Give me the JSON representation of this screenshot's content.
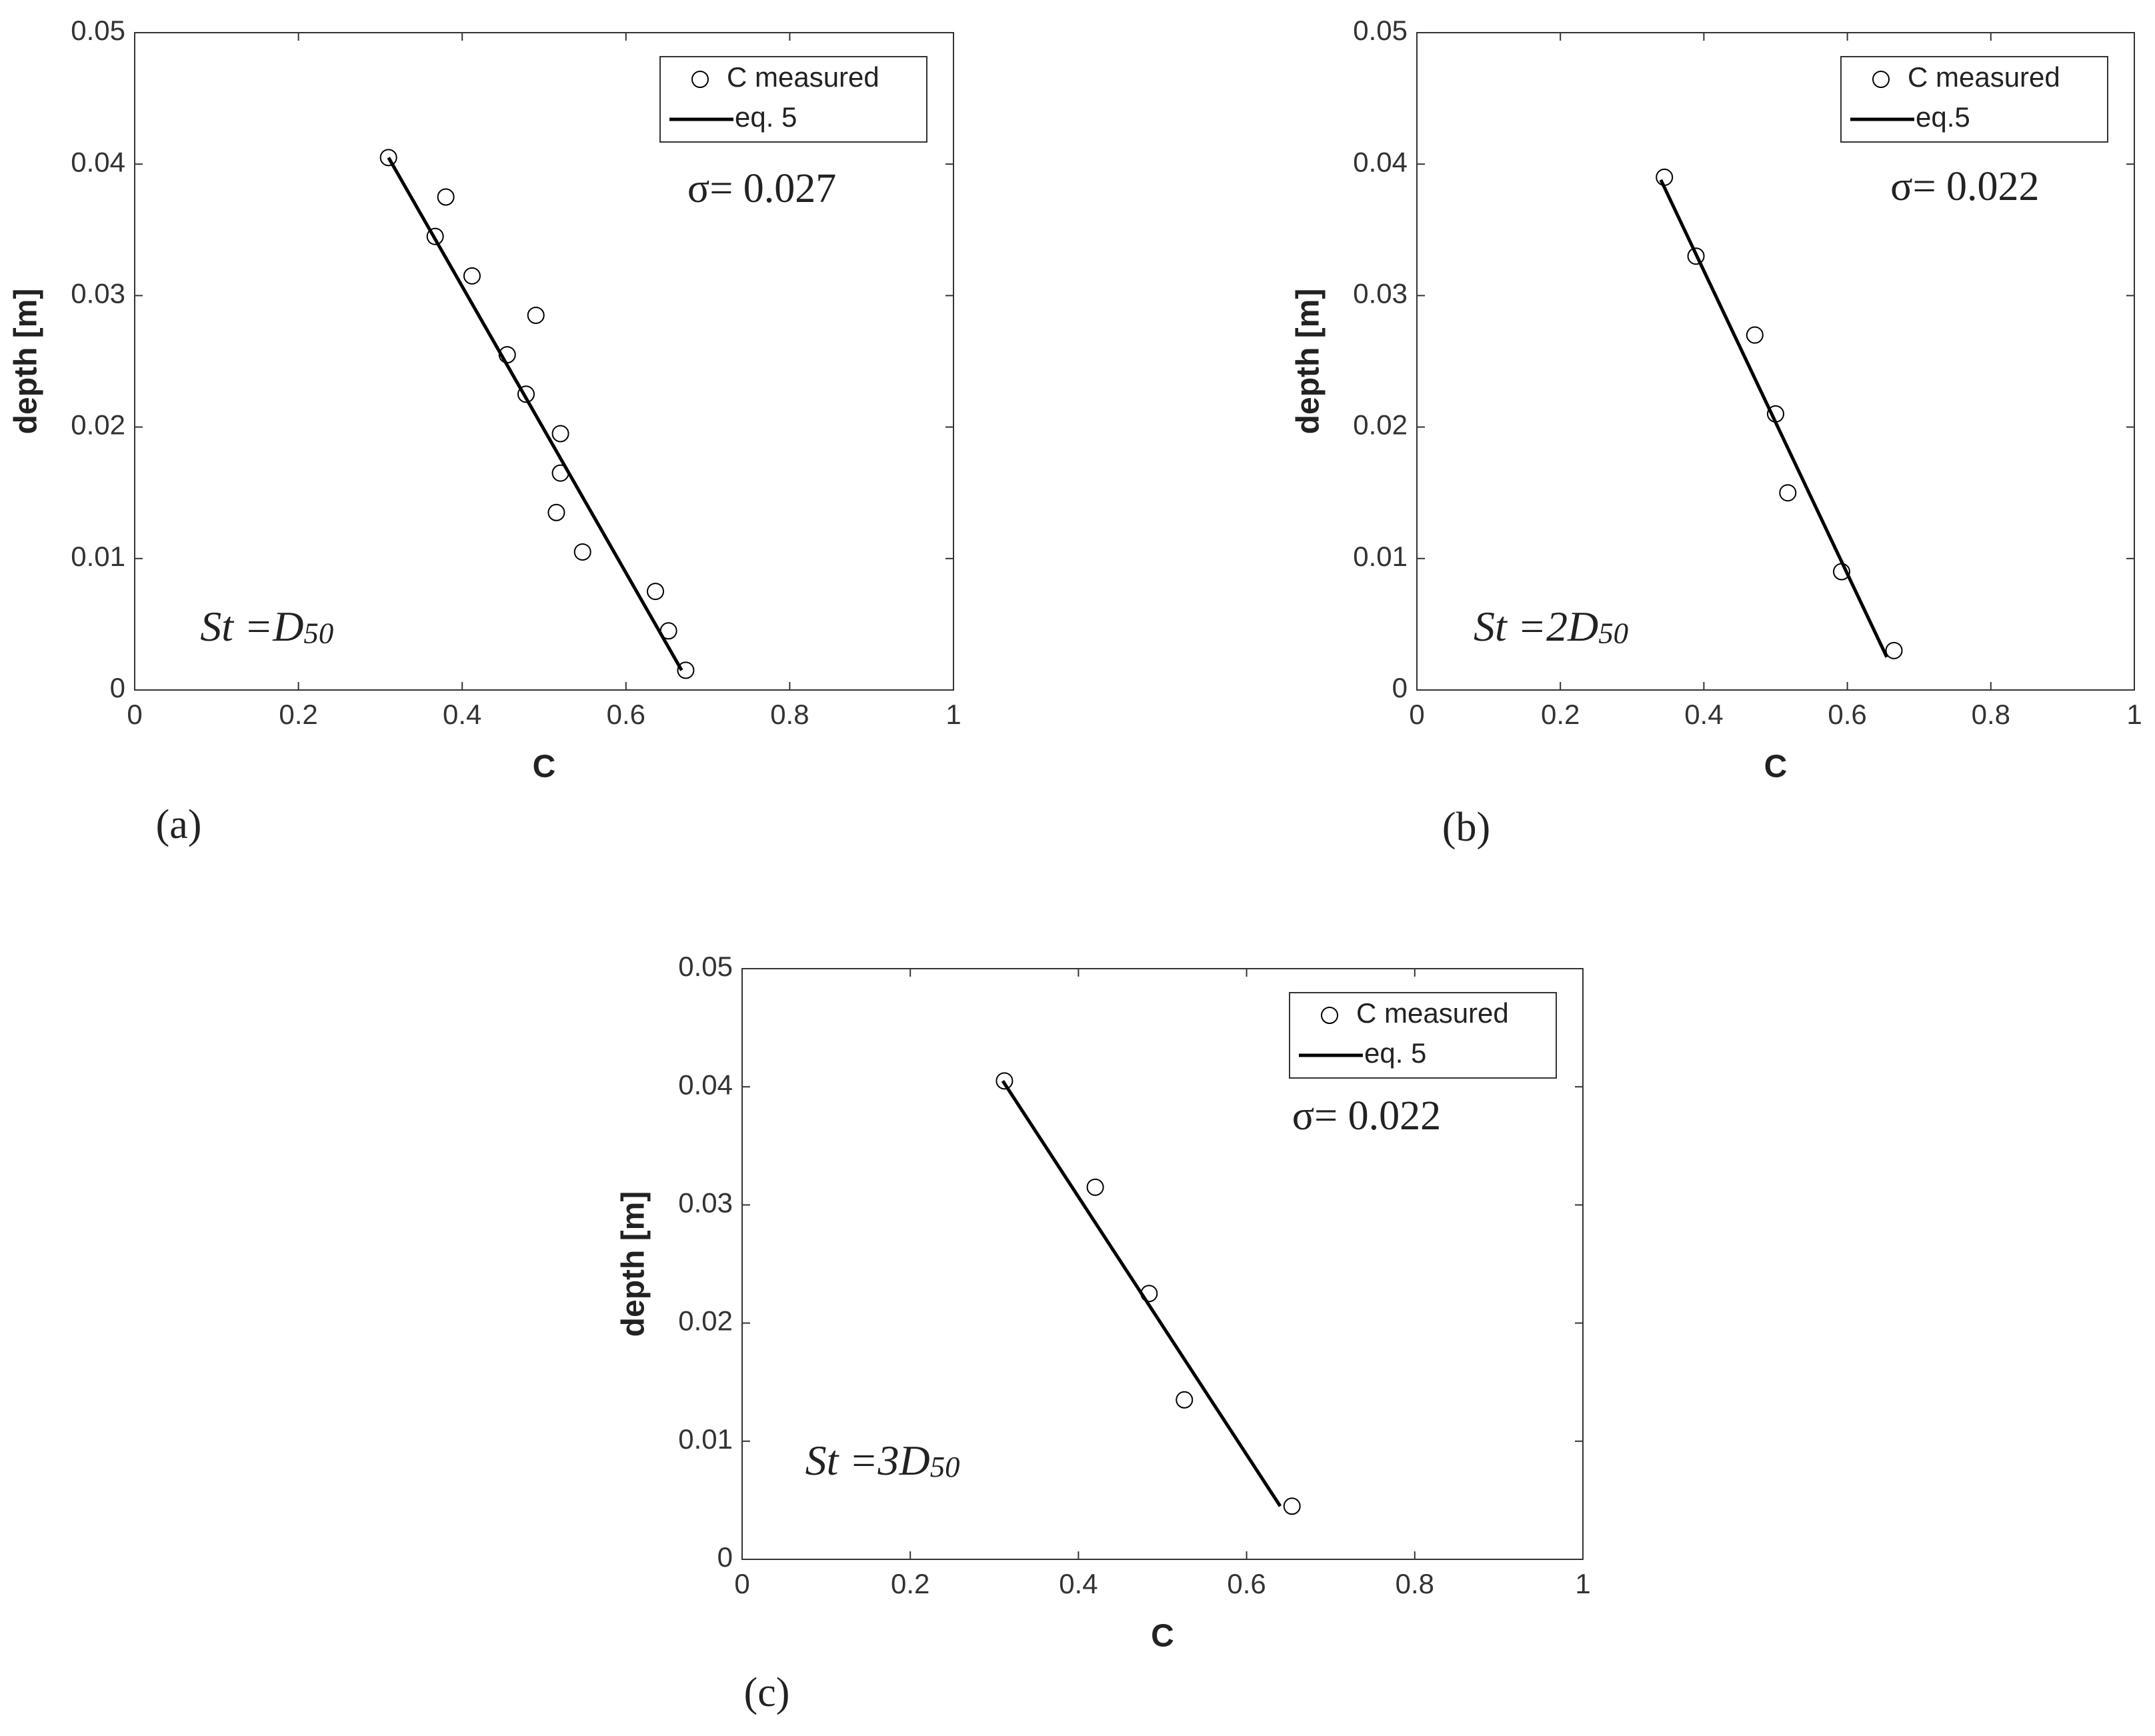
{
  "chart_data": [
    {
      "type": "scatter",
      "label": "(a)",
      "x_label": "C",
      "y_label": "depth [m]",
      "xlim": [
        0,
        1
      ],
      "xticks": [
        0,
        0.2,
        0.4,
        0.6,
        0.8,
        1
      ],
      "ylim": [
        0,
        0.05
      ],
      "yticks": [
        0,
        0.01,
        0.02,
        0.03,
        0.04,
        0.05
      ],
      "legend": "upper right",
      "grid": false,
      "annotations": [
        "σ= 0.027",
        "St =D50"
      ],
      "series": [
        {
          "name": "C measured",
          "mark": "circle",
          "color": "#000000",
          "x": [
            0.31,
            0.38,
            0.367,
            0.412,
            0.49,
            0.455,
            0.478,
            0.52,
            0.52,
            0.515,
            0.547,
            0.636,
            0.652,
            0.673
          ],
          "values": [
            0.0405,
            0.0375,
            0.0345,
            0.0315,
            0.0285,
            0.0255,
            0.0225,
            0.0195,
            0.0165,
            0.0135,
            0.0105,
            0.0075,
            0.0045,
            0.0015
          ]
        },
        {
          "name": "eq. 5",
          "mark": "line",
          "color": "#000000",
          "x": [
            0.31,
            0.668
          ],
          "values": [
            0.0405,
            0.0015
          ]
        }
      ]
    },
    {
      "type": "scatter",
      "label": "(b)",
      "x_label": "C",
      "y_label": "depth [m]",
      "xlim": [
        0,
        1
      ],
      "xticks": [
        0,
        0.2,
        0.4,
        0.6,
        0.8,
        1
      ],
      "ylim": [
        0,
        0.05
      ],
      "yticks": [
        0,
        0.01,
        0.02,
        0.03,
        0.04,
        0.05
      ],
      "legend": "upper right",
      "grid": false,
      "annotations": [
        "σ= 0.022",
        "St =2D50"
      ],
      "series": [
        {
          "name": "C measured",
          "mark": "circle",
          "color": "#000000",
          "x": [
            0.345,
            0.389,
            0.471,
            0.5,
            0.517,
            0.592,
            0.665
          ],
          "values": [
            0.039,
            0.033,
            0.027,
            0.021,
            0.015,
            0.009,
            0.003
          ]
        },
        {
          "name": "eq.5",
          "mark": "line",
          "color": "#000000",
          "x": [
            0.34,
            0.655
          ],
          "values": [
            0.0388,
            0.0025
          ]
        }
      ]
    },
    {
      "type": "scatter",
      "label": "(c)",
      "x_label": "C",
      "y_label": "depth [m]",
      "xlim": [
        0,
        1
      ],
      "xticks": [
        0,
        0.2,
        0.4,
        0.6,
        0.8,
        1
      ],
      "ylim": [
        0,
        0.05
      ],
      "yticks": [
        0,
        0.01,
        0.02,
        0.03,
        0.04,
        0.05
      ],
      "legend": "upper right",
      "grid": false,
      "annotations": [
        "σ= 0.022",
        "St =3D50"
      ],
      "series": [
        {
          "name": "C measured",
          "mark": "circle",
          "color": "#000000",
          "x": [
            0.312,
            0.42,
            0.484,
            0.526,
            0.654
          ],
          "values": [
            0.0405,
            0.0315,
            0.0225,
            0.0135,
            0.0045
          ]
        },
        {
          "name": "eq. 5",
          "mark": "line",
          "color": "#000000",
          "x": [
            0.31,
            0.64
          ],
          "values": [
            0.0405,
            0.0045
          ]
        }
      ]
    }
  ]
}
